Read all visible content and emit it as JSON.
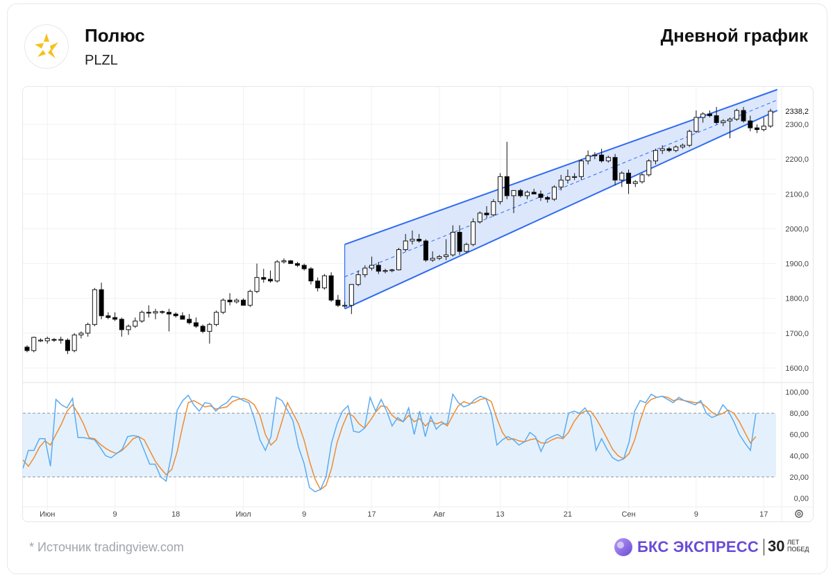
{
  "header": {
    "company": "Полюс",
    "ticker": "PLZL",
    "chart_title": "Дневной график"
  },
  "footer": {
    "source": "*  Источник tradingview.com",
    "brand": "БКС ЭКСПРЕСС",
    "brand_years": "30",
    "brand_years_caption_1": "ЛЕТ",
    "brand_years_caption_2": "ПОБЕД"
  },
  "colors": {
    "up_candle_fill": "#ffffff",
    "down_candle_fill": "#000000",
    "channel_line": "#2f6bf0",
    "channel_fill": "#d6e3fb",
    "stoch_k": "#5aaaf0",
    "stoch_d": "#f08a2c",
    "stoch_band": "#e4f1fc",
    "price_label_bg": "#1b1b1b"
  },
  "chart_data": [
    {
      "type": "candlestick",
      "x_tick_labels": [
        "Июн",
        "9",
        "18",
        "Июл",
        "9",
        "17",
        "Авг",
        "13",
        "21",
        "Сен",
        "9",
        "17"
      ],
      "y_ticks": [
        "1600,0",
        "1700,0",
        "1800,0",
        "1900,0",
        "2000,0",
        "2100,0",
        "2200,0",
        "2300,0"
      ],
      "ylim": [
        1570,
        2400
      ],
      "last_price_label": "2338,2",
      "ohlc": [
        [
          1660,
          1665,
          1645,
          1650
        ],
        [
          1650,
          1690,
          1645,
          1688
        ],
        [
          1680,
          1685,
          1675,
          1680
        ],
        [
          1678,
          1690,
          1670,
          1685
        ],
        [
          1682,
          1686,
          1675,
          1680
        ],
        [
          1680,
          1690,
          1670,
          1682
        ],
        [
          1680,
          1685,
          1640,
          1650
        ],
        [
          1650,
          1700,
          1645,
          1695
        ],
        [
          1695,
          1705,
          1685,
          1700
        ],
        [
          1700,
          1730,
          1690,
          1725
        ],
        [
          1725,
          1830,
          1720,
          1825
        ],
        [
          1825,
          1845,
          1740,
          1750
        ],
        [
          1750,
          1760,
          1740,
          1745
        ],
        [
          1745,
          1760,
          1735,
          1740
        ],
        [
          1740,
          1745,
          1690,
          1710
        ],
        [
          1710,
          1725,
          1695,
          1720
        ],
        [
          1720,
          1745,
          1715,
          1735
        ],
        [
          1735,
          1765,
          1730,
          1760
        ],
        [
          1760,
          1780,
          1745,
          1758
        ],
        [
          1758,
          1770,
          1740,
          1762
        ],
        [
          1762,
          1765,
          1755,
          1760
        ],
        [
          1760,
          1770,
          1705,
          1755
        ],
        [
          1755,
          1760,
          1745,
          1750
        ],
        [
          1750,
          1760,
          1740,
          1740
        ],
        [
          1740,
          1755,
          1725,
          1730
        ],
        [
          1730,
          1745,
          1715,
          1720
        ],
        [
          1720,
          1725,
          1700,
          1705
        ],
        [
          1705,
          1730,
          1670,
          1725
        ],
        [
          1725,
          1765,
          1720,
          1760
        ],
        [
          1760,
          1800,
          1755,
          1795
        ],
        [
          1795,
          1815,
          1780,
          1790
        ],
        [
          1790,
          1800,
          1785,
          1795
        ],
        [
          1795,
          1800,
          1780,
          1780
        ],
        [
          1780,
          1825,
          1775,
          1820
        ],
        [
          1820,
          1900,
          1815,
          1860
        ],
        [
          1860,
          1885,
          1845,
          1855
        ],
        [
          1855,
          1880,
          1845,
          1850
        ],
        [
          1850,
          1910,
          1845,
          1905
        ],
        [
          1905,
          1915,
          1900,
          1908
        ],
        [
          1908,
          1910,
          1900,
          1900
        ],
        [
          1900,
          1905,
          1890,
          1895
        ],
        [
          1895,
          1900,
          1880,
          1885
        ],
        [
          1885,
          1890,
          1840,
          1850
        ],
        [
          1850,
          1860,
          1820,
          1830
        ],
        [
          1830,
          1870,
          1825,
          1865
        ],
        [
          1865,
          1875,
          1790,
          1795
        ],
        [
          1795,
          1810,
          1775,
          1780
        ],
        [
          1780,
          1790,
          1775,
          1780
        ],
        [
          1780,
          1840,
          1755,
          1840
        ],
        [
          1840,
          1880,
          1835,
          1868
        ],
        [
          1868,
          1895,
          1860,
          1887
        ],
        [
          1887,
          1920,
          1880,
          1895
        ],
        [
          1895,
          1905,
          1870,
          1878
        ],
        [
          1878,
          1885,
          1872,
          1880
        ],
        [
          1880,
          1885,
          1875,
          1882
        ],
        [
          1882,
          1945,
          1880,
          1940
        ],
        [
          1940,
          1985,
          1935,
          1965
        ],
        [
          1965,
          1995,
          1955,
          1970
        ],
        [
          1970,
          1985,
          1960,
          1965
        ],
        [
          1965,
          1970,
          1905,
          1910
        ],
        [
          1910,
          1935,
          1905,
          1915
        ],
        [
          1915,
          1925,
          1910,
          1920
        ],
        [
          1920,
          1970,
          1910,
          1925
        ],
        [
          1925,
          2010,
          1920,
          1990
        ],
        [
          1990,
          2010,
          1925,
          1935
        ],
        [
          1935,
          1960,
          1930,
          1955
        ],
        [
          1955,
          2030,
          1950,
          2020
        ],
        [
          2020,
          2050,
          2015,
          2045
        ],
        [
          2045,
          2065,
          2030,
          2040
        ],
        [
          2040,
          2085,
          2035,
          2078
        ],
        [
          2078,
          2160,
          2070,
          2150
        ],
        [
          2150,
          2250,
          2085,
          2095
        ],
        [
          2095,
          2110,
          2045,
          2110
        ],
        [
          2110,
          2115,
          2090,
          2095
        ],
        [
          2095,
          2110,
          2085,
          2105
        ],
        [
          2105,
          2115,
          2100,
          2100
        ],
        [
          2100,
          2110,
          2080,
          2090
        ],
        [
          2090,
          2095,
          2075,
          2085
        ],
        [
          2085,
          2125,
          2080,
          2120
        ],
        [
          2120,
          2155,
          2110,
          2140
        ],
        [
          2140,
          2170,
          2130,
          2150
        ],
        [
          2150,
          2160,
          2140,
          2150
        ],
        [
          2150,
          2200,
          2140,
          2195
        ],
        [
          2195,
          2225,
          2185,
          2210
        ],
        [
          2210,
          2220,
          2200,
          2212
        ],
        [
          2212,
          2230,
          2190,
          2195
        ],
        [
          2195,
          2210,
          2190,
          2205
        ],
        [
          2205,
          2215,
          2125,
          2140
        ],
        [
          2140,
          2165,
          2120,
          2160
        ],
        [
          2160,
          2170,
          2100,
          2130
        ],
        [
          2130,
          2140,
          2120,
          2135
        ],
        [
          2135,
          2160,
          2130,
          2155
        ],
        [
          2155,
          2200,
          2150,
          2195
        ],
        [
          2195,
          2230,
          2185,
          2225
        ],
        [
          2225,
          2240,
          2215,
          2230
        ],
        [
          2230,
          2235,
          2220,
          2225
        ],
        [
          2225,
          2240,
          2220,
          2235
        ],
        [
          2235,
          2245,
          2230,
          2240
        ],
        [
          2240,
          2285,
          2235,
          2280
        ],
        [
          2280,
          2340,
          2275,
          2320
        ],
        [
          2320,
          2335,
          2305,
          2330
        ],
        [
          2330,
          2340,
          2320,
          2325
        ],
        [
          2325,
          2350,
          2300,
          2305
        ],
        [
          2305,
          2315,
          2295,
          2310
        ],
        [
          2310,
          2320,
          2260,
          2315
        ],
        [
          2315,
          2345,
          2310,
          2340
        ],
        [
          2340,
          2350,
          2305,
          2310
        ],
        [
          2310,
          2325,
          2280,
          2290
        ],
        [
          2290,
          2300,
          2275,
          2285
        ],
        [
          2285,
          2320,
          2280,
          2295
        ],
        [
          2295,
          2345,
          2290,
          2338
        ]
      ],
      "channel": {
        "upper": [
          [
            47,
            1955
          ],
          [
            111,
            2400
          ]
        ],
        "lower": [
          [
            47,
            1770
          ],
          [
            111,
            2340
          ]
        ],
        "mid": [
          [
            47,
            1862
          ],
          [
            111,
            2370
          ]
        ]
      }
    },
    {
      "type": "line",
      "name": "stochastic",
      "y_ticks": [
        "0,00",
        "20,00",
        "40,00",
        "60,00",
        "80,00",
        "100,00"
      ],
      "ylim": [
        -5,
        105
      ],
      "band": [
        20,
        80
      ],
      "k_values": [
        28,
        45,
        45,
        56,
        56,
        30,
        93,
        88,
        85,
        94,
        57,
        57,
        56,
        55,
        48,
        40,
        38,
        42,
        46,
        58,
        59,
        58,
        45,
        32,
        32,
        20,
        16,
        42,
        83,
        92,
        97,
        88,
        82,
        90,
        89,
        82,
        87,
        90,
        96,
        95,
        92,
        90,
        75,
        55,
        45,
        58,
        95,
        92,
        83,
        73,
        48,
        33,
        10,
        6,
        8,
        20,
        52,
        70,
        82,
        87,
        63,
        62,
        66,
        95,
        82,
        93,
        82,
        68,
        76,
        72,
        85,
        60,
        82,
        58,
        77,
        65,
        70,
        70,
        98,
        90,
        86,
        88,
        93,
        96,
        94,
        80,
        50,
        55,
        58,
        55,
        50,
        53,
        62,
        58,
        44,
        55,
        58,
        60,
        57,
        80,
        82,
        80,
        85,
        77,
        45,
        56,
        46,
        38,
        35,
        37,
        53,
        82,
        92,
        90,
        98,
        95,
        96,
        93,
        90,
        95,
        92,
        90,
        88,
        92,
        80,
        76,
        78,
        88,
        82,
        72,
        60,
        52,
        45,
        80
      ],
      "d_values": [
        36,
        30,
        38,
        48,
        54,
        50,
        60,
        70,
        82,
        88,
        80,
        70,
        57,
        56,
        51,
        47,
        44,
        42,
        45,
        50,
        56,
        58,
        55,
        45,
        35,
        28,
        22,
        27,
        44,
        68,
        90,
        92,
        89,
        86,
        87,
        84,
        85,
        86,
        91,
        93,
        94,
        92,
        88,
        78,
        60,
        50,
        55,
        72,
        90,
        80,
        70,
        55,
        35,
        18,
        8,
        12,
        28,
        52,
        68,
        80,
        77,
        70,
        66,
        73,
        81,
        87,
        86,
        78,
        74,
        72,
        78,
        72,
        75,
        68,
        73,
        70,
        72,
        68,
        78,
        87,
        91,
        89,
        90,
        93,
        94,
        91,
        75,
        62,
        55,
        56,
        54,
        53,
        55,
        56,
        52,
        52,
        55,
        57,
        56,
        62,
        72,
        79,
        82,
        82,
        75,
        66,
        56,
        46,
        40,
        37,
        42,
        55,
        73,
        88,
        93,
        95,
        96,
        95,
        92,
        93,
        92,
        91,
        90,
        90,
        86,
        81,
        78,
        80,
        83,
        80,
        72,
        62,
        52,
        58
      ]
    }
  ]
}
